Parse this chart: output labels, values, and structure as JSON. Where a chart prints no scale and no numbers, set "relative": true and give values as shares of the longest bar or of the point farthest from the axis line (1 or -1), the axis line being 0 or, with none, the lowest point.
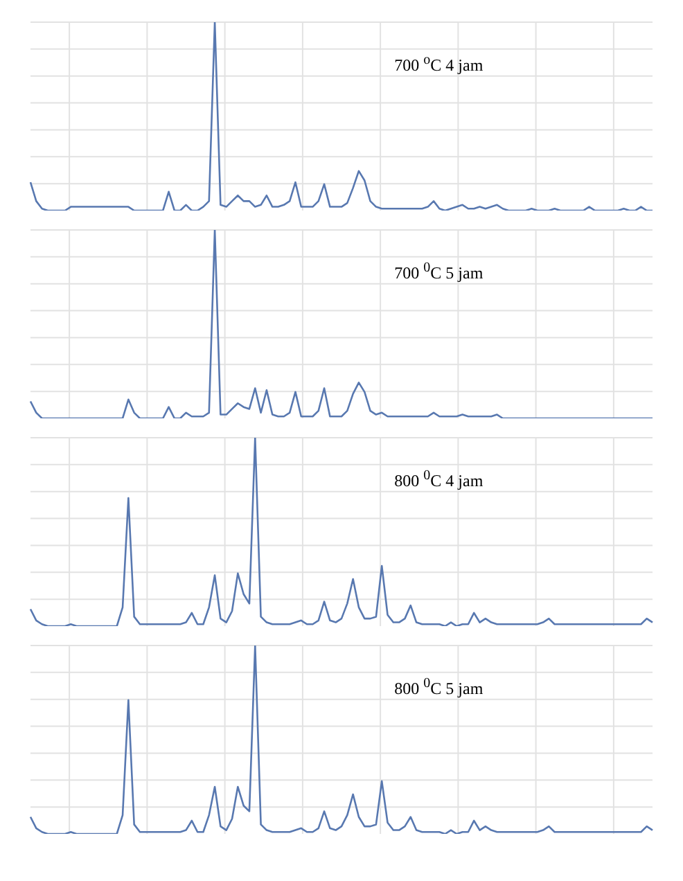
{
  "chart_data": [
    {
      "type": "line",
      "title": "700 $^{o}$C 4 jam",
      "relative": true,
      "grid": true,
      "marker": "none",
      "line_style": "solid",
      "categories": [
        null,
        null,
        null,
        null,
        null,
        null,
        null,
        null,
        null,
        null,
        null,
        null,
        null,
        null,
        null,
        null,
        null,
        null,
        null,
        null,
        null,
        null,
        null,
        null,
        null,
        null,
        null,
        null,
        null,
        null,
        null,
        null,
        null,
        null,
        null,
        null,
        null,
        null,
        null,
        null,
        null,
        null,
        null,
        null,
        null,
        null,
        null,
        null,
        null,
        null,
        null,
        null,
        null,
        null,
        null,
        null,
        null,
        null,
        null,
        null,
        null,
        null,
        null,
        null,
        null,
        null,
        null,
        null,
        null,
        null,
        null,
        null,
        null,
        null,
        null,
        null,
        null,
        null,
        null,
        null,
        null,
        null,
        null,
        null,
        null,
        null,
        null,
        null,
        null,
        null,
        null,
        null,
        null,
        null,
        null,
        null,
        null,
        null,
        null,
        null,
        null,
        null,
        null,
        null,
        null,
        null,
        null,
        null,
        null
      ],
      "series": [
        {
          "color": "#5878b0",
          "values": [
            0.15,
            0.05,
            0.01,
            0,
            0,
            0,
            0,
            0.02,
            0.02,
            0.02,
            0.02,
            0.02,
            0.02,
            0.02,
            0.02,
            0.02,
            0.02,
            0.02,
            0,
            0,
            0,
            0,
            0,
            0,
            0.1,
            0,
            0,
            0.03,
            0,
            0,
            0.02,
            0.05,
            1,
            0.03,
            0.02,
            0.05,
            0.08,
            0.05,
            0.05,
            0.02,
            0.03,
            0.08,
            0.02,
            0.02,
            0.03,
            0.05,
            0.15,
            0.02,
            0.02,
            0.02,
            0.05,
            0.14,
            0.02,
            0.02,
            0.02,
            0.04,
            0.12,
            0.21,
            0.16,
            0.05,
            0.02,
            0.01,
            0.01,
            0.01,
            0.01,
            0.01,
            0.01,
            0.01,
            0.01,
            0.02,
            0.05,
            0.01,
            0,
            0.01,
            0.02,
            0.03,
            0.01,
            0.01,
            0.02,
            0.01,
            0.02,
            0.03,
            0.01,
            0,
            0,
            0,
            0,
            0.01,
            0,
            0,
            0,
            0.01,
            0,
            0,
            0,
            0,
            0,
            0.02,
            0,
            0,
            0,
            0,
            0,
            0.01,
            0,
            0,
            0.02,
            0,
            0
          ]
        }
      ]
    },
    {
      "type": "line",
      "title": "700 $^{0}$C 5 jam",
      "relative": true,
      "grid": true,
      "marker": "none",
      "line_style": "solid",
      "categories": [
        null,
        null,
        null,
        null,
        null,
        null,
        null,
        null,
        null,
        null,
        null,
        null,
        null,
        null,
        null,
        null,
        null,
        null,
        null,
        null,
        null,
        null,
        null,
        null,
        null,
        null,
        null,
        null,
        null,
        null,
        null,
        null,
        null,
        null,
        null,
        null,
        null,
        null,
        null,
        null,
        null,
        null,
        null,
        null,
        null,
        null,
        null,
        null,
        null,
        null,
        null,
        null,
        null,
        null,
        null,
        null,
        null,
        null,
        null,
        null,
        null,
        null,
        null,
        null,
        null,
        null,
        null,
        null,
        null,
        null,
        null,
        null,
        null,
        null,
        null,
        null,
        null,
        null,
        null,
        null,
        null,
        null,
        null,
        null,
        null,
        null,
        null,
        null,
        null,
        null,
        null,
        null,
        null,
        null,
        null,
        null,
        null,
        null,
        null,
        null,
        null,
        null,
        null,
        null,
        null,
        null,
        null,
        null,
        null
      ],
      "series": [
        {
          "color": "#5878b0",
          "values": [
            0.09,
            0.03,
            0,
            0,
            0,
            0,
            0,
            0,
            0,
            0,
            0,
            0,
            0,
            0,
            0,
            0,
            0,
            0.1,
            0.03,
            0,
            0,
            0,
            0,
            0,
            0.06,
            0,
            0,
            0.03,
            0.01,
            0.01,
            0.01,
            0.03,
            1,
            0.02,
            0.02,
            0.05,
            0.08,
            0.06,
            0.05,
            0.16,
            0.03,
            0.15,
            0.02,
            0.01,
            0.01,
            0.03,
            0.14,
            0.01,
            0.01,
            0.01,
            0.04,
            0.16,
            0.01,
            0.01,
            0.01,
            0.04,
            0.13,
            0.19,
            0.14,
            0.04,
            0.02,
            0.03,
            0.01,
            0.01,
            0.01,
            0.01,
            0.01,
            0.01,
            0.01,
            0.01,
            0.03,
            0.01,
            0.01,
            0.01,
            0.01,
            0.02,
            0.01,
            0.01,
            0.01,
            0.01,
            0.01,
            0.02,
            0,
            0,
            0,
            0,
            0,
            0,
            0,
            0,
            0,
            0,
            0,
            0,
            0,
            0,
            0,
            0,
            0,
            0,
            0,
            0,
            0,
            0,
            0,
            0,
            0,
            0,
            0
          ]
        }
      ]
    },
    {
      "type": "line",
      "title": "800 $^{0}$C 4 jam",
      "relative": true,
      "grid": true,
      "marker": "none",
      "line_style": "solid",
      "categories": [
        null,
        null,
        null,
        null,
        null,
        null,
        null,
        null,
        null,
        null,
        null,
        null,
        null,
        null,
        null,
        null,
        null,
        null,
        null,
        null,
        null,
        null,
        null,
        null,
        null,
        null,
        null,
        null,
        null,
        null,
        null,
        null,
        null,
        null,
        null,
        null,
        null,
        null,
        null,
        null,
        null,
        null,
        null,
        null,
        null,
        null,
        null,
        null,
        null,
        null,
        null,
        null,
        null,
        null,
        null,
        null,
        null,
        null,
        null,
        null,
        null,
        null,
        null,
        null,
        null,
        null,
        null,
        null,
        null,
        null,
        null,
        null,
        null,
        null,
        null,
        null,
        null,
        null,
        null,
        null,
        null,
        null,
        null,
        null,
        null,
        null,
        null,
        null,
        null,
        null,
        null,
        null,
        null,
        null,
        null,
        null,
        null,
        null,
        null,
        null,
        null,
        null,
        null,
        null,
        null,
        null,
        null,
        null,
        null
      ],
      "series": [
        {
          "color": "#5878b0",
          "values": [
            0.09,
            0.03,
            0.01,
            0,
            0,
            0,
            0,
            0.01,
            0,
            0,
            0,
            0,
            0,
            0,
            0,
            0,
            0.1,
            0.68,
            0.05,
            0.01,
            0.01,
            0.01,
            0.01,
            0.01,
            0.01,
            0.01,
            0.01,
            0.02,
            0.07,
            0.01,
            0.01,
            0.1,
            0.27,
            0.04,
            0.02,
            0.08,
            0.28,
            0.17,
            0.12,
            1,
            0.05,
            0.02,
            0.01,
            0.01,
            0.01,
            0.01,
            0.02,
            0.03,
            0.01,
            0.01,
            0.03,
            0.13,
            0.03,
            0.02,
            0.04,
            0.12,
            0.25,
            0.1,
            0.04,
            0.04,
            0.05,
            0.32,
            0.06,
            0.02,
            0.02,
            0.04,
            0.11,
            0.02,
            0.01,
            0.01,
            0.01,
            0.01,
            0,
            0.02,
            0,
            0.01,
            0.01,
            0.07,
            0.02,
            0.04,
            0.02,
            0.01,
            0.01,
            0.01,
            0.01,
            0.01,
            0.01,
            0.01,
            0.01,
            0.02,
            0.04,
            0.01,
            0.01,
            0.01,
            0.01,
            0.01,
            0.01,
            0.01,
            0.01,
            0.01,
            0.01,
            0.01,
            0.01,
            0.01,
            0.01,
            0.01,
            0.01,
            0.04,
            0.02
          ]
        }
      ]
    },
    {
      "type": "line",
      "title": "800 $^{0}$C 5 jam",
      "relative": true,
      "grid": true,
      "marker": "none",
      "line_style": "solid",
      "categories": [
        null,
        null,
        null,
        null,
        null,
        null,
        null,
        null,
        null,
        null,
        null,
        null,
        null,
        null,
        null,
        null,
        null,
        null,
        null,
        null,
        null,
        null,
        null,
        null,
        null,
        null,
        null,
        null,
        null,
        null,
        null,
        null,
        null,
        null,
        null,
        null,
        null,
        null,
        null,
        null,
        null,
        null,
        null,
        null,
        null,
        null,
        null,
        null,
        null,
        null,
        null,
        null,
        null,
        null,
        null,
        null,
        null,
        null,
        null,
        null,
        null,
        null,
        null,
        null,
        null,
        null,
        null,
        null,
        null,
        null,
        null,
        null,
        null,
        null,
        null,
        null,
        null,
        null,
        null,
        null,
        null,
        null,
        null,
        null,
        null,
        null,
        null,
        null,
        null,
        null,
        null,
        null,
        null,
        null,
        null,
        null,
        null,
        null,
        null,
        null,
        null,
        null,
        null,
        null,
        null,
        null,
        null,
        null,
        null
      ],
      "series": [
        {
          "color": "#5878b0",
          "values": [
            0.09,
            0.03,
            0.01,
            0,
            0,
            0,
            0,
            0.01,
            0,
            0,
            0,
            0,
            0,
            0,
            0,
            0,
            0.1,
            0.71,
            0.05,
            0.01,
            0.01,
            0.01,
            0.01,
            0.01,
            0.01,
            0.01,
            0.01,
            0.02,
            0.07,
            0.01,
            0.01,
            0.1,
            0.25,
            0.04,
            0.02,
            0.08,
            0.25,
            0.15,
            0.12,
            1,
            0.05,
            0.02,
            0.01,
            0.01,
            0.01,
            0.01,
            0.02,
            0.03,
            0.01,
            0.01,
            0.03,
            0.12,
            0.03,
            0.02,
            0.04,
            0.1,
            0.21,
            0.09,
            0.04,
            0.04,
            0.05,
            0.28,
            0.06,
            0.02,
            0.02,
            0.04,
            0.09,
            0.02,
            0.01,
            0.01,
            0.01,
            0.01,
            0,
            0.02,
            0,
            0.01,
            0.01,
            0.07,
            0.02,
            0.04,
            0.02,
            0.01,
            0.01,
            0.01,
            0.01,
            0.01,
            0.01,
            0.01,
            0.01,
            0.02,
            0.04,
            0.01,
            0.01,
            0.01,
            0.01,
            0.01,
            0.01,
            0.01,
            0.01,
            0.01,
            0.01,
            0.01,
            0.01,
            0.01,
            0.01,
            0.01,
            0.01,
            0.04,
            0.02
          ]
        }
      ]
    }
  ]
}
